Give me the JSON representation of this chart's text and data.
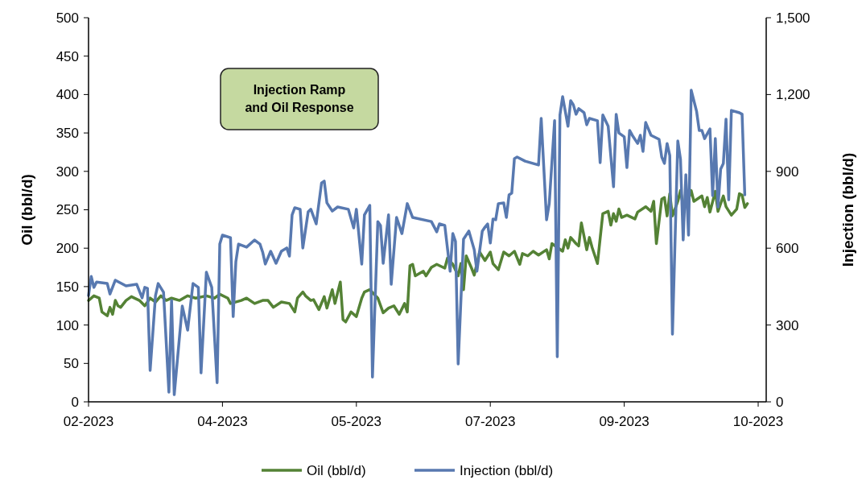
{
  "chart_data": {
    "type": "line",
    "annotations": [
      "Injection Ramp\nand Oil Response"
    ],
    "ylabel": "Oil (bbl/d)",
    "y2label": "Injection (bbl/d)",
    "xlim": [
      "2023-02-20",
      "2023-10-31"
    ],
    "xticks": [
      {
        "value": "2023-02-20",
        "label": "02-2023"
      },
      {
        "value": "2023-04-11",
        "label": "04-2023"
      },
      {
        "value": "2023-05-31",
        "label": "05-2023"
      },
      {
        "value": "2023-07-20",
        "label": "07-2023"
      },
      {
        "value": "2023-09-08",
        "label": "09-2023"
      },
      {
        "value": "2023-10-28",
        "label": "10-2023"
      }
    ],
    "ylim": [
      0,
      500
    ],
    "yticks": [
      0,
      50,
      100,
      150,
      200,
      250,
      300,
      350,
      400,
      450,
      500
    ],
    "y2lim": [
      0,
      1500
    ],
    "y2ticks": [
      0,
      300,
      600,
      900,
      {
        "value": 1200,
        "label": "1,200"
      },
      {
        "value": 1500,
        "label": "1,500"
      }
    ],
    "grid": false,
    "legend": "bottom",
    "marker": "none",
    "line_style": "solid",
    "series": [
      {
        "name": "Oil (bbl/d)",
        "color": "#548235",
        "x": [
          "2023-02-20",
          "2023-02-22",
          "2023-02-24",
          "2023-02-25",
          "2023-02-27",
          "2023-02-28",
          "2023-03-01",
          "2023-03-02",
          "2023-03-03",
          "2023-03-04",
          "2023-03-06",
          "2023-03-08",
          "2023-03-11",
          "2023-03-13",
          "2023-03-15",
          "2023-03-17",
          "2023-03-19",
          "2023-03-21",
          "2023-03-23",
          "2023-03-26",
          "2023-03-29",
          "2023-04-01",
          "2023-04-05",
          "2023-04-08",
          "2023-04-10",
          "2023-04-13",
          "2023-04-14",
          "2023-04-18",
          "2023-04-20",
          "2023-04-23",
          "2023-04-26",
          "2023-04-28",
          "2023-04-30",
          "2023-05-03",
          "2023-05-06",
          "2023-05-08",
          "2023-05-09",
          "2023-05-11",
          "2023-05-12",
          "2023-05-14",
          "2023-05-15",
          "2023-05-17",
          "2023-05-19",
          "2023-05-20",
          "2023-05-22",
          "2023-05-23",
          "2023-05-25",
          "2023-05-26",
          "2023-05-27",
          "2023-05-29",
          "2023-05-31",
          "2023-06-02",
          "2023-06-03",
          "2023-06-05",
          "2023-06-08",
          "2023-06-10",
          "2023-06-12",
          "2023-06-14",
          "2023-06-16",
          "2023-06-18",
          "2023-06-19",
          "2023-06-20",
          "2023-06-21",
          "2023-06-22",
          "2023-06-25",
          "2023-06-26",
          "2023-06-28",
          "2023-06-30",
          "2023-07-03",
          "2023-07-04",
          "2023-07-06",
          "2023-07-08",
          "2023-07-09",
          "2023-07-10",
          "2023-07-11",
          "2023-07-13",
          "2023-07-14",
          "2023-07-16",
          "2023-07-18",
          "2023-07-20",
          "2023-07-21",
          "2023-07-23",
          "2023-07-25",
          "2023-07-27",
          "2023-07-29",
          "2023-07-31",
          "2023-08-01",
          "2023-08-03",
          "2023-08-05",
          "2023-08-07",
          "2023-08-10",
          "2023-08-11",
          "2023-08-12",
          "2023-08-14",
          "2023-08-16",
          "2023-08-17",
          "2023-08-18",
          "2023-08-19",
          "2023-08-21",
          "2023-08-22",
          "2023-08-23",
          "2023-08-25",
          "2023-08-26",
          "2023-08-27",
          "2023-08-29",
          "2023-08-31",
          "2023-09-02",
          "2023-09-03",
          "2023-09-04",
          "2023-09-05",
          "2023-09-06",
          "2023-09-07",
          "2023-09-09",
          "2023-09-12",
          "2023-09-13",
          "2023-09-16",
          "2023-09-18",
          "2023-09-19",
          "2023-09-20",
          "2023-09-22",
          "2023-09-23",
          "2023-09-24",
          "2023-09-25",
          "2023-09-26",
          "2023-09-28",
          "2023-09-29",
          "2023-09-30",
          "2023-10-02",
          "2023-10-03",
          "2023-10-04",
          "2023-10-07",
          "2023-10-08",
          "2023-10-09",
          "2023-10-10",
          "2023-10-12",
          "2023-10-13",
          "2023-10-15",
          "2023-10-16",
          "2023-10-18",
          "2023-10-20",
          "2023-10-21",
          "2023-10-22",
          "2023-10-23",
          "2023-10-24"
        ],
        "values": [
          132,
          138,
          135,
          117,
          112,
          123,
          114,
          132,
          125,
          123,
          132,
          137,
          132,
          125,
          135,
          130,
          138,
          132,
          135,
          132,
          138,
          135,
          138,
          135,
          140,
          135,
          128,
          132,
          135,
          128,
          132,
          132,
          123,
          130,
          128,
          117,
          135,
          143,
          138,
          132,
          133,
          120,
          137,
          122,
          146,
          128,
          156,
          107,
          104,
          117,
          111,
          135,
          143,
          146,
          135,
          116,
          122,
          125,
          114,
          128,
          117,
          177,
          179,
          164,
          170,
          164,
          175,
          179,
          174,
          187,
          179,
          164,
          180,
          146,
          190,
          174,
          165,
          195,
          184,
          195,
          180,
          172,
          195,
          190,
          196,
          179,
          193,
          190,
          196,
          191,
          198,
          186,
          206,
          201,
          196,
          211,
          200,
          214,
          206,
          203,
          233,
          198,
          214,
          201,
          180,
          245,
          248,
          230,
          245,
          235,
          251,
          240,
          243,
          238,
          247,
          254,
          248,
          261,
          206,
          264,
          266,
          242,
          271,
          242,
          261,
          275,
          256,
          264,
          275,
          261,
          268,
          254,
          266,
          247,
          274,
          248,
          268,
          254,
          243,
          251,
          271,
          269,
          253,
          258
        ]
      },
      {
        "name": "Injection (bbl/d)",
        "color": "#5879b0",
        "axis": "y2",
        "x": [
          "2023-02-20",
          "2023-02-21",
          "2023-02-22",
          "2023-02-23",
          "2023-02-27",
          "2023-02-28",
          "2023-03-02",
          "2023-03-06",
          "2023-03-10",
          "2023-03-12",
          "2023-03-13",
          "2023-03-14",
          "2023-03-15",
          "2023-03-17",
          "2023-03-18",
          "2023-03-20",
          "2023-03-22",
          "2023-03-23",
          "2023-03-24",
          "2023-03-27",
          "2023-03-29",
          "2023-03-31",
          "2023-04-02",
          "2023-04-03",
          "2023-04-05",
          "2023-04-07",
          "2023-04-09",
          "2023-04-10",
          "2023-04-11",
          "2023-04-14",
          "2023-04-15",
          "2023-04-16",
          "2023-04-17",
          "2023-04-20",
          "2023-04-23",
          "2023-04-25",
          "2023-04-26",
          "2023-04-27",
          "2023-04-29",
          "2023-05-01",
          "2023-05-03",
          "2023-05-05",
          "2023-05-06",
          "2023-05-07",
          "2023-05-08",
          "2023-05-10",
          "2023-05-11",
          "2023-05-13",
          "2023-05-14",
          "2023-05-16",
          "2023-05-18",
          "2023-05-19",
          "2023-05-20",
          "2023-05-22",
          "2023-05-24",
          "2023-05-28",
          "2023-05-30",
          "2023-05-31",
          "2023-06-02",
          "2023-06-03",
          "2023-06-05",
          "2023-06-06",
          "2023-06-08",
          "2023-06-09",
          "2023-06-10",
          "2023-06-12",
          "2023-06-13",
          "2023-06-15",
          "2023-06-17",
          "2023-06-19",
          "2023-06-21",
          "2023-06-28",
          "2023-06-30",
          "2023-07-01",
          "2023-07-03",
          "2023-07-05",
          "2023-07-06",
          "2023-07-07",
          "2023-07-08",
          "2023-07-10",
          "2023-07-12",
          "2023-07-14",
          "2023-07-15",
          "2023-07-17",
          "2023-07-18",
          "2023-07-19",
          "2023-07-20",
          "2023-07-21",
          "2023-07-22",
          "2023-07-23",
          "2023-07-25",
          "2023-07-26",
          "2023-07-27",
          "2023-07-28",
          "2023-07-29",
          "2023-07-30",
          "2023-08-02",
          "2023-08-07",
          "2023-08-08",
          "2023-08-10",
          "2023-08-11",
          "2023-08-13",
          "2023-08-14",
          "2023-08-15",
          "2023-08-16",
          "2023-08-18",
          "2023-08-19",
          "2023-08-20",
          "2023-08-21",
          "2023-08-22",
          "2023-08-24",
          "2023-08-25",
          "2023-08-26",
          "2023-08-29",
          "2023-08-30",
          "2023-08-31",
          "2023-09-02",
          "2023-09-04",
          "2023-09-05",
          "2023-09-06",
          "2023-09-08",
          "2023-09-09",
          "2023-09-10",
          "2023-09-11",
          "2023-09-13",
          "2023-09-14",
          "2023-09-15",
          "2023-09-16",
          "2023-09-18",
          "2023-09-21",
          "2023-09-22",
          "2023-09-23",
          "2023-09-24",
          "2023-09-25",
          "2023-09-26",
          "2023-09-28",
          "2023-09-29",
          "2023-09-30",
          "2023-10-01",
          "2023-10-02",
          "2023-10-03",
          "2023-10-05",
          "2023-10-06",
          "2023-10-07",
          "2023-10-08",
          "2023-10-10",
          "2023-10-11",
          "2023-10-12",
          "2023-10-13",
          "2023-10-14",
          "2023-10-15",
          "2023-10-16",
          "2023-10-17",
          "2023-10-18",
          "2023-10-21",
          "2023-10-22",
          "2023-10-23"
        ],
        "values": [
          415,
          490,
          447,
          468,
          462,
          421,
          475,
          453,
          459,
          406,
          447,
          443,
          123,
          415,
          462,
          428,
          38,
          396,
          28,
          374,
          280,
          462,
          447,
          113,
          506,
          447,
          75,
          616,
          651,
          641,
          333,
          547,
          616,
          604,
          632,
          616,
          585,
          538,
          588,
          541,
          588,
          601,
          569,
          730,
          758,
          752,
          601,
          742,
          752,
          695,
          855,
          862,
          777,
          745,
          761,
          752,
          679,
          752,
          538,
          730,
          767,
          97,
          704,
          689,
          541,
          730,
          459,
          720,
          657,
          774,
          720,
          704,
          664,
          695,
          689,
          510,
          657,
          626,
          148,
          635,
          667,
          594,
          510,
          667,
          682,
          695,
          620,
          714,
          711,
          774,
          777,
          720,
          808,
          815,
          950,
          956,
          940,
          925,
          1107,
          711,
          774,
          1098,
          176,
          1120,
          1192,
          1076,
          1176,
          1160,
          1123,
          1145,
          1129,
          1082,
          1107,
          1098,
          934,
          1120,
          1076,
          840,
          1123,
          1050,
          1035,
          915,
          1060,
          1041,
          1009,
          1041,
          978,
          1091,
          1041,
          1025,
          956,
          931,
          1009,
          962,
          264,
          1019,
          947,
          632,
          887,
          651,
          1217,
          1135,
          1060,
          1060,
          1028,
          1066,
          805,
          1028,
          761,
          909,
          931,
          1104,
          789,
          1138,
          1129,
          1123,
          808
        ]
      }
    ]
  }
}
